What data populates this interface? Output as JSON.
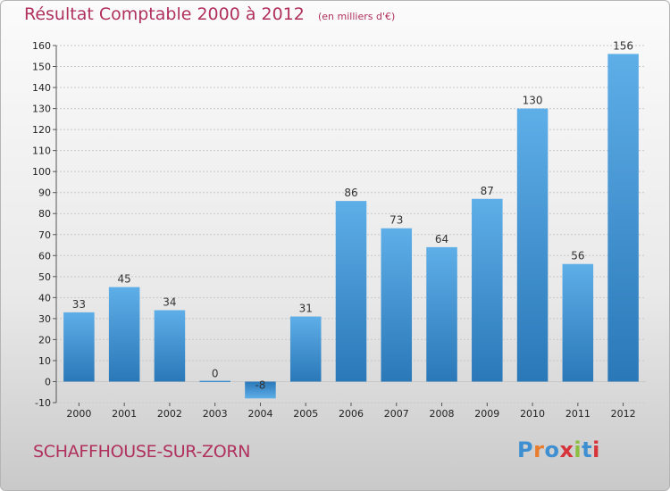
{
  "chart_data": {
    "type": "bar",
    "title": "Résultat Comptable 2000 à 2012",
    "subtitle": "(en milliers d'€)",
    "categories": [
      "2000",
      "2001",
      "2002",
      "2003",
      "2004",
      "2005",
      "2006",
      "2007",
      "2008",
      "2009",
      "2010",
      "2011",
      "2012"
    ],
    "values": [
      33,
      45,
      34,
      0,
      -8,
      31,
      86,
      73,
      64,
      87,
      130,
      56,
      156
    ],
    "value_labels": [
      "33",
      "45",
      "34",
      "0",
      "-8",
      "31",
      "86",
      "73",
      "64",
      "87",
      "130",
      "56",
      "156"
    ],
    "ylim": [
      -10,
      160
    ],
    "yticks": [
      -10,
      0,
      10,
      20,
      30,
      40,
      50,
      60,
      70,
      80,
      90,
      100,
      110,
      120,
      130,
      140,
      150,
      160
    ],
    "grid": true,
    "xlabel": "",
    "ylabel": "",
    "colors": {
      "bar_light": "#5eaee8",
      "bar_dark": "#2a78b8",
      "grid": "#c8c8c8"
    }
  },
  "footer": {
    "town": "SCHAFFHOUSE-SUR-ZORN",
    "logo": [
      "P",
      "r",
      "o",
      "x",
      "i",
      "t",
      "i"
    ]
  }
}
